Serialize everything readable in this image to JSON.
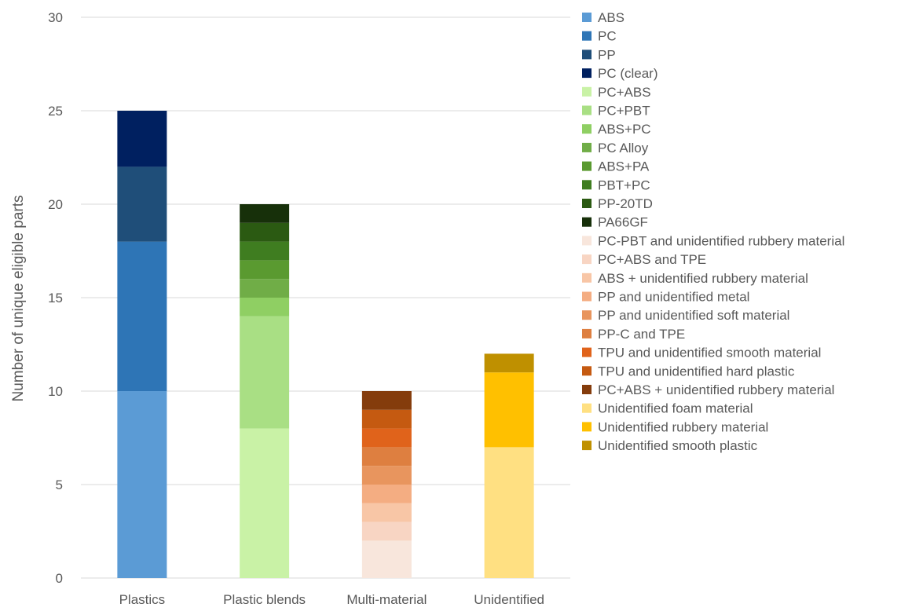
{
  "chart_data": {
    "type": "bar",
    "stacked": true,
    "title": "",
    "xlabel": "",
    "ylabel": "Number of unique eligible parts",
    "ylim": [
      0,
      30
    ],
    "yticks": [
      0,
      5,
      10,
      15,
      20,
      25,
      30
    ],
    "grid": true,
    "legend_position": "right",
    "categories": [
      "Plastics",
      "Plastic blends",
      "Multi-material",
      "Unidentified"
    ],
    "series": [
      {
        "name": "ABS",
        "color": "#5b9bd5",
        "values": [
          10,
          0,
          0,
          0
        ]
      },
      {
        "name": "PC",
        "color": "#2e75b6",
        "values": [
          8,
          0,
          0,
          0
        ]
      },
      {
        "name": "PP",
        "color": "#1f4e79",
        "values": [
          4,
          0,
          0,
          0
        ]
      },
      {
        "name": "PC (clear)",
        "color": "#002060",
        "values": [
          3,
          0,
          0,
          0
        ]
      },
      {
        "name": "PC+ABS",
        "color": "#c9f2a6",
        "values": [
          0,
          8,
          0,
          0
        ]
      },
      {
        "name": "PC+PBT",
        "color": "#a9df84",
        "values": [
          0,
          6,
          0,
          0
        ]
      },
      {
        "name": "ABS+PC",
        "color": "#8fcf63",
        "values": [
          0,
          1,
          0,
          0
        ]
      },
      {
        "name": "PC Alloy",
        "color": "#70ad47",
        "values": [
          0,
          1,
          0,
          0
        ]
      },
      {
        "name": "ABS+PA",
        "color": "#5a9a30",
        "values": [
          0,
          1,
          0,
          0
        ]
      },
      {
        "name": "PBT+PC",
        "color": "#3f7d20",
        "values": [
          0,
          1,
          0,
          0
        ]
      },
      {
        "name": "PP-20TD",
        "color": "#2b5a12",
        "values": [
          0,
          1,
          0,
          0
        ]
      },
      {
        "name": "PA66GF",
        "color": "#17300a",
        "values": [
          0,
          1,
          0,
          0
        ]
      },
      {
        "name": "PC-PBT and unidentified rubbery material",
        "color": "#f8e6dc",
        "values": [
          0,
          0,
          2,
          0
        ]
      },
      {
        "name": "PC+ABS and TPE",
        "color": "#f8d5c3",
        "values": [
          0,
          0,
          1,
          0
        ]
      },
      {
        "name": "ABS + unidentified rubbery material",
        "color": "#f8c6a6",
        "values": [
          0,
          0,
          1,
          0
        ]
      },
      {
        "name": "PP and unidentified metal",
        "color": "#f4ad82",
        "values": [
          0,
          0,
          1,
          0
        ]
      },
      {
        "name": "PP and unidentified soft material",
        "color": "#e8955e",
        "values": [
          0,
          0,
          1,
          0
        ]
      },
      {
        "name": "PP-C and TPE",
        "color": "#de7f40",
        "values": [
          0,
          0,
          1,
          0
        ]
      },
      {
        "name": "TPU and unidentified smooth material",
        "color": "#e0631b",
        "values": [
          0,
          0,
          1,
          0
        ]
      },
      {
        "name": "TPU and unidentified hard plastic",
        "color": "#c55a11",
        "values": [
          0,
          0,
          1,
          0
        ]
      },
      {
        "name": "PC+ABS + unidentified rubbery material",
        "color": "#843c0c",
        "values": [
          0,
          0,
          1,
          0
        ]
      },
      {
        "name": "Unidentified foam material",
        "color": "#ffe082",
        "values": [
          0,
          0,
          0,
          7
        ]
      },
      {
        "name": "Unidentified rubbery material",
        "color": "#ffc000",
        "values": [
          0,
          0,
          0,
          4
        ]
      },
      {
        "name": "Unidentified smooth plastic",
        "color": "#bf9000",
        "values": [
          0,
          0,
          0,
          1
        ]
      }
    ],
    "gridline_color": "#d9d9d9"
  }
}
